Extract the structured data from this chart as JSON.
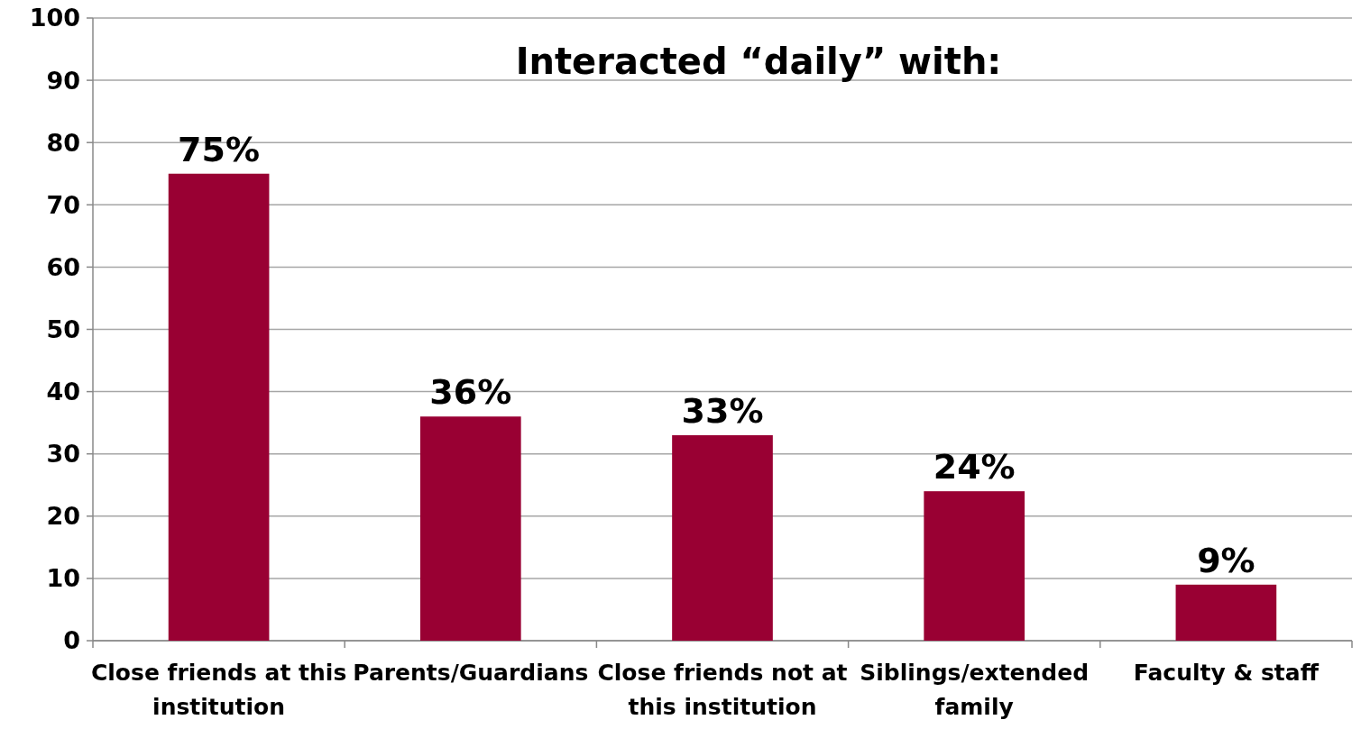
{
  "chart_data": {
    "type": "bar",
    "title": "Interacted “daily” with:",
    "categories": [
      "Close friends at this institution",
      "Parents/Guardians",
      "Close friends not at this institution",
      "Siblings/extended family",
      "Faculty & staff"
    ],
    "values": [
      75,
      36,
      33,
      24,
      9
    ],
    "value_labels": [
      "75%",
      "36%",
      "33%",
      "24%",
      "9%"
    ],
    "color": "#990033",
    "ylim": [
      0,
      100
    ],
    "yticks": [
      0,
      10,
      20,
      30,
      40,
      50,
      60,
      70,
      80,
      90,
      100
    ],
    "grid": "y"
  }
}
